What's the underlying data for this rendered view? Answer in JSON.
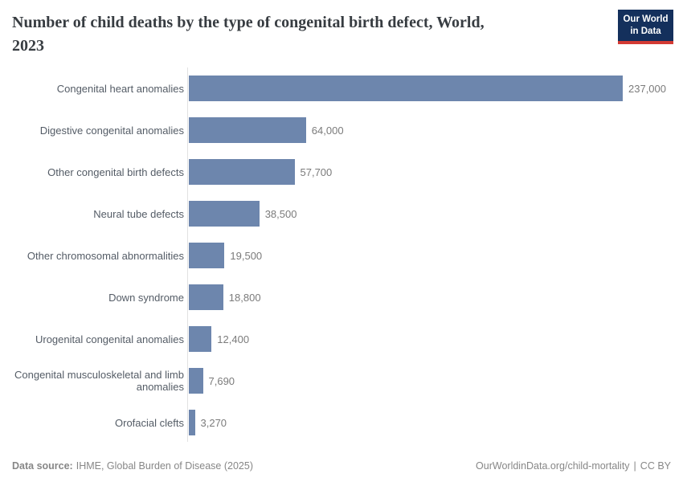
{
  "header": {
    "title_line1": "Number of child deaths by the type of congenital birth defect, World,",
    "title_line2": "2023"
  },
  "logo": {
    "line1": "Our World",
    "line2": "in Data",
    "bg_color": "#14305c",
    "accent_color": "#d33a34"
  },
  "footer": {
    "source_label": "Data source:",
    "source_value": "IHME, Global Burden of Disease (2025)",
    "link": "OurWorldinData.org/child-mortality",
    "separator": "|",
    "license": "CC BY"
  },
  "chart_data": {
    "type": "bar",
    "orientation": "horizontal",
    "title": "Number of child deaths by the type of congenital birth defect, World, 2023",
    "categories": [
      "Congenital heart anomalies",
      "Digestive congenital anomalies",
      "Other congenital birth defects",
      "Neural tube defects",
      "Other chromosomal abnormalities",
      "Down syndrome",
      "Urogenital congenital anomalies",
      "Congenital musculoskeletal and limb anomalies",
      "Orofacial clefts"
    ],
    "values": [
      237000,
      64000,
      57700,
      38500,
      19500,
      18800,
      12400,
      7690,
      3270
    ],
    "value_labels": [
      "237,000",
      "64,000",
      "57,700",
      "38,500",
      "19,500",
      "18,800",
      "12,400",
      "7,690",
      "3,270"
    ],
    "xlim": [
      0,
      237000
    ],
    "grid": false,
    "legend": "none",
    "bar_color": "#6d86ad",
    "axis_color": "#e2e2e2"
  }
}
